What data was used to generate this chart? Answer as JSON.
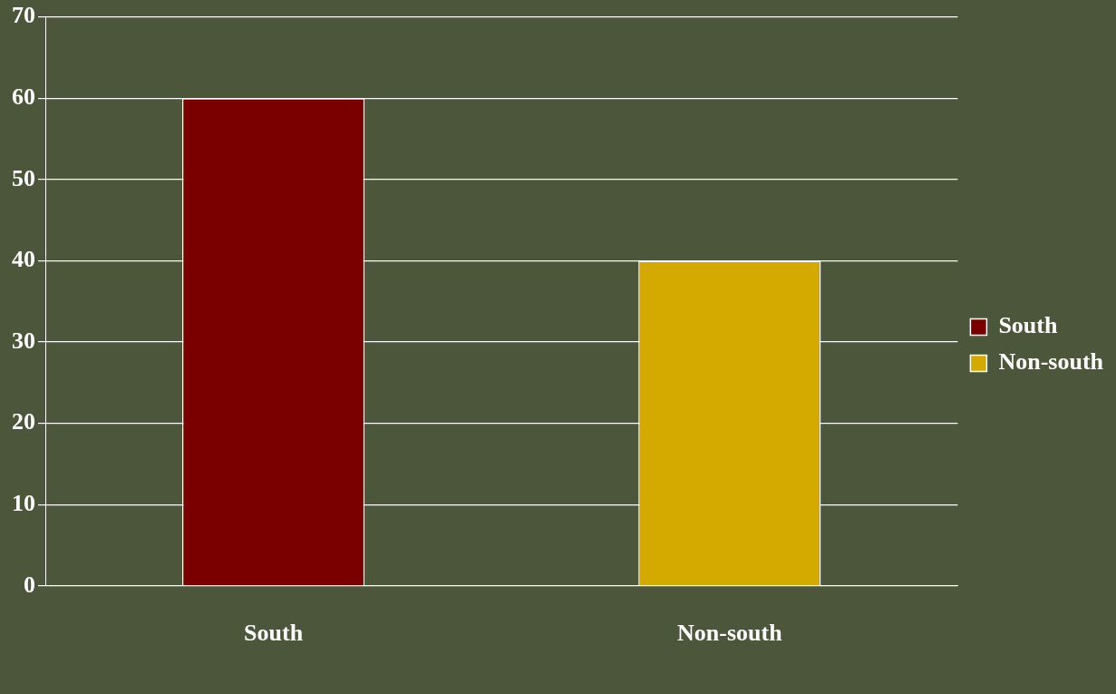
{
  "chart_data": {
    "type": "bar",
    "categories": [
      "South",
      "Non-south"
    ],
    "series": [
      {
        "name": "South",
        "color": "#7a0000",
        "values": [
          60,
          null
        ]
      },
      {
        "name": "Non-south",
        "color": "#d4aa00",
        "values": [
          null,
          40
        ]
      }
    ],
    "ylim": [
      0,
      70
    ],
    "yticks": [
      0,
      10,
      20,
      30,
      40,
      50,
      60,
      70
    ],
    "grid": "y",
    "legend": "right"
  }
}
